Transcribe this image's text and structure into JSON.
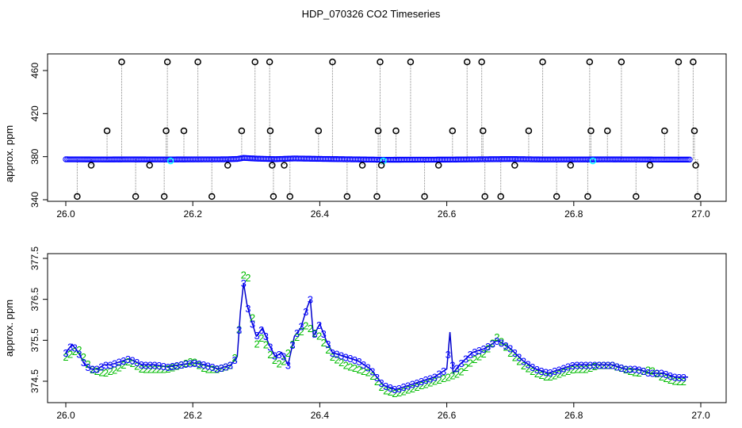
{
  "title": "HDP_070326  CO2 Timeseries",
  "chart_data": [
    {
      "type": "scatter",
      "title": "HDP_070326  CO2 Timeseries",
      "ylabel": "approx. ppm",
      "xlabel": "",
      "xlim": [
        26.0,
        27.0
      ],
      "ylim": [
        340,
        470
      ],
      "xticks": [
        26.0,
        26.2,
        26.4,
        26.6,
        26.8,
        27.0
      ],
      "yticks": [
        340,
        380,
        420,
        460
      ],
      "xtick_labels": [
        "26.0",
        "26.2",
        "26.4",
        "26.6",
        "26.8",
        "27.0"
      ],
      "ytick_labels": [
        "340",
        "380",
        "420",
        "460"
      ],
      "grid": false,
      "colors": {
        "outlier": "#000000",
        "series": "#0000ff",
        "highlight": "#00ffff",
        "spike_line": "#888888"
      },
      "baseline": {
        "x": [
          26.0,
          26.05,
          26.1,
          26.15,
          26.2,
          26.25,
          26.27,
          26.28,
          26.3,
          26.33,
          26.36,
          26.4,
          26.45,
          26.5,
          26.55,
          26.6,
          26.65,
          26.7,
          26.75,
          26.8,
          26.85,
          26.9,
          26.95,
          26.98
        ],
        "y": [
          375,
          374.8,
          374.9,
          374.8,
          374.9,
          375,
          375.5,
          377,
          376,
          375.2,
          376.2,
          375.6,
          375,
          374.4,
          374.5,
          374.6,
          375,
          375.4,
          374.8,
          374.8,
          374.9,
          374.8,
          374.6,
          374.6
        ]
      },
      "outliers": [
        {
          "x": 26.018,
          "y": 343
        },
        {
          "x": 26.04,
          "y": 372
        },
        {
          "x": 26.065,
          "y": 404
        },
        {
          "x": 26.088,
          "y": 468
        },
        {
          "x": 26.11,
          "y": 343
        },
        {
          "x": 26.132,
          "y": 372
        },
        {
          "x": 26.155,
          "y": 343
        },
        {
          "x": 26.158,
          "y": 404
        },
        {
          "x": 26.16,
          "y": 468
        },
        {
          "x": 26.186,
          "y": 404
        },
        {
          "x": 26.208,
          "y": 468
        },
        {
          "x": 26.23,
          "y": 343
        },
        {
          "x": 26.255,
          "y": 372
        },
        {
          "x": 26.277,
          "y": 404
        },
        {
          "x": 26.298,
          "y": 468
        },
        {
          "x": 26.321,
          "y": 468
        },
        {
          "x": 26.322,
          "y": 404
        },
        {
          "x": 26.325,
          "y": 372
        },
        {
          "x": 26.327,
          "y": 343
        },
        {
          "x": 26.344,
          "y": 372
        },
        {
          "x": 26.353,
          "y": 343
        },
        {
          "x": 26.398,
          "y": 404
        },
        {
          "x": 26.42,
          "y": 468
        },
        {
          "x": 26.443,
          "y": 343
        },
        {
          "x": 26.467,
          "y": 372
        },
        {
          "x": 26.49,
          "y": 343
        },
        {
          "x": 26.492,
          "y": 404
        },
        {
          "x": 26.495,
          "y": 468
        },
        {
          "x": 26.497,
          "y": 372
        },
        {
          "x": 26.52,
          "y": 404
        },
        {
          "x": 26.543,
          "y": 468
        },
        {
          "x": 26.565,
          "y": 343
        },
        {
          "x": 26.587,
          "y": 372
        },
        {
          "x": 26.609,
          "y": 404
        },
        {
          "x": 26.632,
          "y": 468
        },
        {
          "x": 26.655,
          "y": 468
        },
        {
          "x": 26.657,
          "y": 404
        },
        {
          "x": 26.66,
          "y": 343
        },
        {
          "x": 26.685,
          "y": 343
        },
        {
          "x": 26.707,
          "y": 372
        },
        {
          "x": 26.729,
          "y": 404
        },
        {
          "x": 26.751,
          "y": 468
        },
        {
          "x": 26.773,
          "y": 343
        },
        {
          "x": 26.795,
          "y": 372
        },
        {
          "x": 26.822,
          "y": 343
        },
        {
          "x": 26.825,
          "y": 468
        },
        {
          "x": 26.827,
          "y": 404
        },
        {
          "x": 26.853,
          "y": 404
        },
        {
          "x": 26.875,
          "y": 468
        },
        {
          "x": 26.898,
          "y": 343
        },
        {
          "x": 26.92,
          "y": 372
        },
        {
          "x": 26.943,
          "y": 404
        },
        {
          "x": 26.965,
          "y": 468
        },
        {
          "x": 26.988,
          "y": 468
        },
        {
          "x": 26.99,
          "y": 404
        },
        {
          "x": 26.992,
          "y": 372
        },
        {
          "x": 26.995,
          "y": 343
        }
      ],
      "highlights": [
        {
          "x": 26.165,
          "y": 372
        },
        {
          "x": 26.5,
          "y": 372
        },
        {
          "x": 26.83,
          "y": 372
        }
      ]
    },
    {
      "type": "line",
      "title": "",
      "ylabel": "approx. ppm",
      "xlabel": "",
      "xlim": [
        26.0,
        27.0
      ],
      "ylim": [
        373.8,
        377.6
      ],
      "xticks": [
        26.0,
        26.2,
        26.4,
        26.6,
        26.8,
        27.0
      ],
      "yticks": [
        374.5,
        375.5,
        376.5,
        377.5
      ],
      "xtick_labels": [
        "26.0",
        "26.2",
        "26.4",
        "26.6",
        "26.8",
        "27.0"
      ],
      "ytick_labels": [
        "374.5",
        "375.5",
        "376.5",
        "377.5"
      ],
      "grid": false,
      "colors": {
        "line": "#0000cc",
        "series3": "#0000ff",
        "series2": "#00bb00"
      },
      "series": [
        {
          "marker": "3",
          "x": [
            26.0,
            26.01,
            26.02,
            26.03,
            26.04,
            26.05,
            26.06,
            26.07,
            26.08,
            26.09,
            26.1,
            26.12,
            26.14,
            26.16,
            26.18,
            26.2,
            26.22,
            26.24,
            26.26,
            26.27,
            26.275,
            26.28,
            26.285,
            26.29,
            26.3,
            26.31,
            26.32,
            26.33,
            26.34,
            26.35,
            26.36,
            26.37,
            26.38,
            26.385,
            26.39,
            26.4,
            26.41,
            26.42,
            26.44,
            26.46,
            26.48,
            26.5,
            26.52,
            26.54,
            26.56,
            26.58,
            26.6,
            26.605,
            26.61,
            26.62,
            26.64,
            26.66,
            26.68,
            26.7,
            26.72,
            26.74,
            26.76,
            26.78,
            26.8,
            26.82,
            26.84,
            26.86,
            26.88,
            26.9,
            26.92,
            26.94,
            26.96,
            26.98
          ],
          "y": [
            375.2,
            375.4,
            375.2,
            374.9,
            374.8,
            374.8,
            374.9,
            374.9,
            374.95,
            375.0,
            375.05,
            374.9,
            374.9,
            374.85,
            374.9,
            374.95,
            374.9,
            374.8,
            374.9,
            375.1,
            376.2,
            376.9,
            376.4,
            376.1,
            375.6,
            375.8,
            375.4,
            375.1,
            375.2,
            374.9,
            375.6,
            375.8,
            376.3,
            376.5,
            375.6,
            375.9,
            375.5,
            375.2,
            375.1,
            375.0,
            374.8,
            374.4,
            374.3,
            374.4,
            374.5,
            374.6,
            374.8,
            375.7,
            374.7,
            374.9,
            375.2,
            375.3,
            375.5,
            375.3,
            375.0,
            374.8,
            374.7,
            374.8,
            374.9,
            374.9,
            374.9,
            374.9,
            374.8,
            374.8,
            374.7,
            374.7,
            374.6,
            374.6
          ]
        },
        {
          "marker": "2",
          "x": [
            26.0,
            26.02,
            26.04,
            26.06,
            26.08,
            26.1,
            26.12,
            26.14,
            26.16,
            26.18,
            26.2,
            26.22,
            26.24,
            26.26,
            26.27,
            26.28,
            26.285,
            26.29,
            26.3,
            26.31,
            26.32,
            26.33,
            26.34,
            26.36,
            26.38,
            26.39,
            26.4,
            26.42,
            26.44,
            26.46,
            26.48,
            26.5,
            26.52,
            26.54,
            26.56,
            26.58,
            26.6,
            26.62,
            26.64,
            26.66,
            26.68,
            26.7,
            26.72,
            26.74,
            26.76,
            26.78,
            26.8,
            26.82,
            26.84,
            26.86,
            26.88,
            26.9,
            26.92,
            26.94,
            26.96,
            26.98
          ],
          "y": [
            375.1,
            375.3,
            374.8,
            374.7,
            374.8,
            375.0,
            374.8,
            374.8,
            374.8,
            374.9,
            375.0,
            374.8,
            374.8,
            374.9,
            375.2,
            377.1,
            377.4,
            376.5,
            375.4,
            375.6,
            375.2,
            375.0,
            374.9,
            375.5,
            375.9,
            375.7,
            375.6,
            375.1,
            374.9,
            374.8,
            374.7,
            374.3,
            374.2,
            374.3,
            374.4,
            374.5,
            374.6,
            374.7,
            375.0,
            375.2,
            375.6,
            375.2,
            374.9,
            374.7,
            374.6,
            374.7,
            374.8,
            374.8,
            374.9,
            374.9,
            374.8,
            374.7,
            374.8,
            374.6,
            374.5,
            374.5
          ]
        }
      ]
    }
  ]
}
